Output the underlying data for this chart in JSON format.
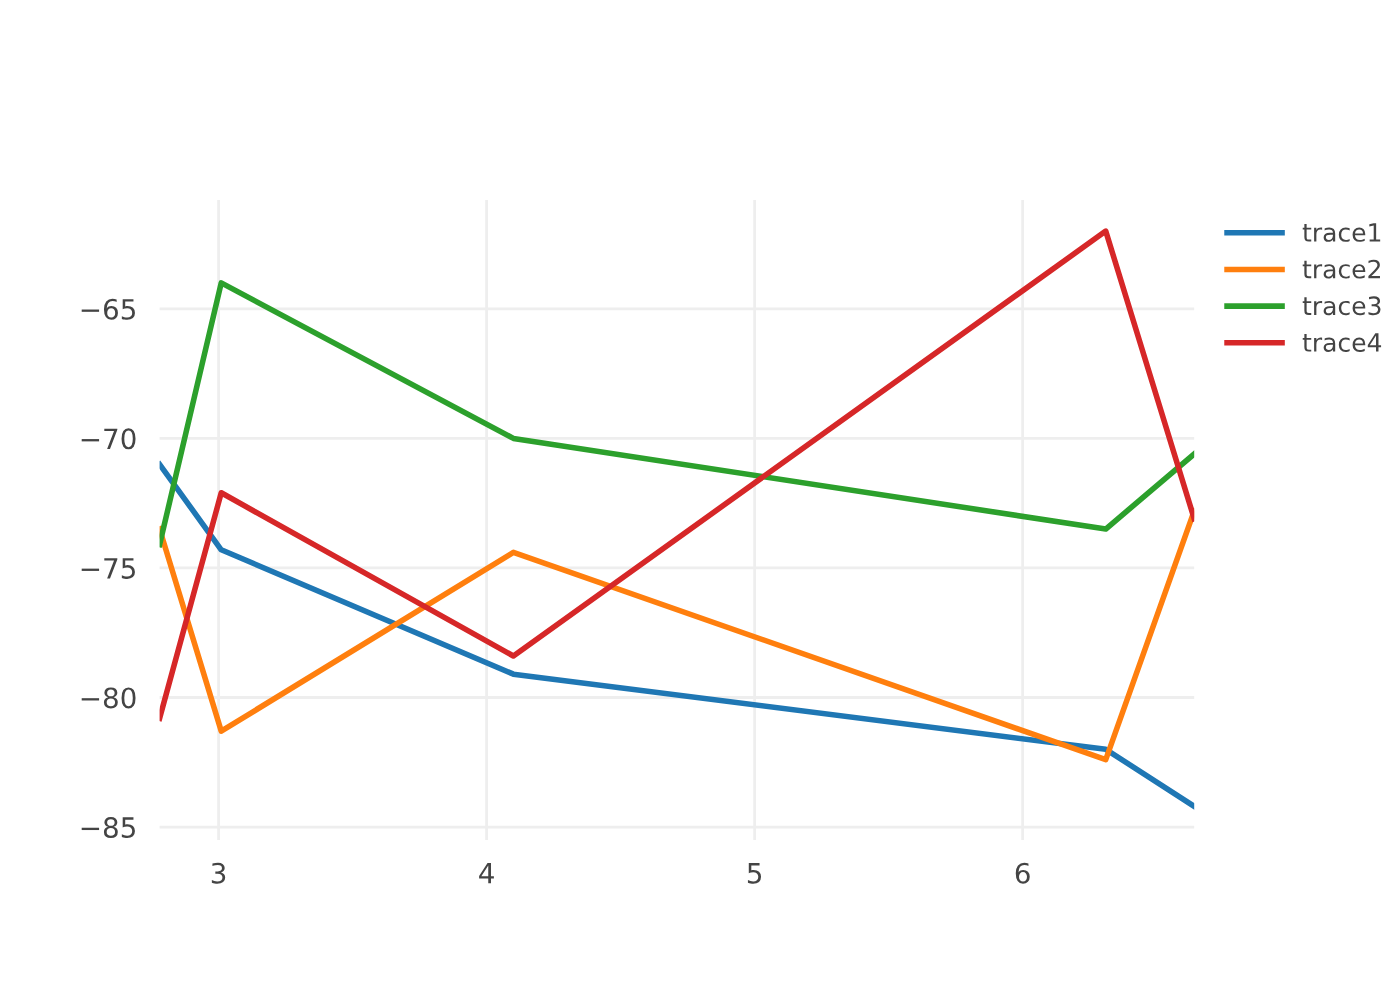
{
  "chart_data": {
    "type": "line",
    "x": [
      2.78,
      3.01,
      4.1,
      6.31,
      6.64
    ],
    "series": [
      {
        "name": "trace1",
        "color": "#1f77b4",
        "values": [
          -71.0,
          -74.3,
          -79.1,
          -82.0,
          -84.2
        ]
      },
      {
        "name": "trace2",
        "color": "#ff7f0e",
        "values": [
          -73.5,
          -81.3,
          -74.4,
          -82.4,
          -72.8
        ]
      },
      {
        "name": "trace3",
        "color": "#2ca02c",
        "values": [
          -74.1,
          -64.0,
          -70.0,
          -73.5,
          -70.6
        ]
      },
      {
        "name": "trace4",
        "color": "#d62728",
        "values": [
          -80.8,
          -72.1,
          -78.4,
          -62.0,
          -73.1
        ]
      }
    ],
    "xlim": [
      2.78,
      6.64
    ],
    "ylim": [
      -85.5,
      -60.8
    ],
    "xticks": [
      3,
      4,
      5,
      6
    ],
    "yticks": [
      {
        "value": -65,
        "label": "−65"
      },
      {
        "value": -70,
        "label": "−70"
      },
      {
        "value": -75,
        "label": "−75"
      },
      {
        "value": -80,
        "label": "−80"
      },
      {
        "value": -85,
        "label": "−85"
      }
    ],
    "grid": true,
    "legend": "top right",
    "marker": "none",
    "line_style": "solid"
  }
}
